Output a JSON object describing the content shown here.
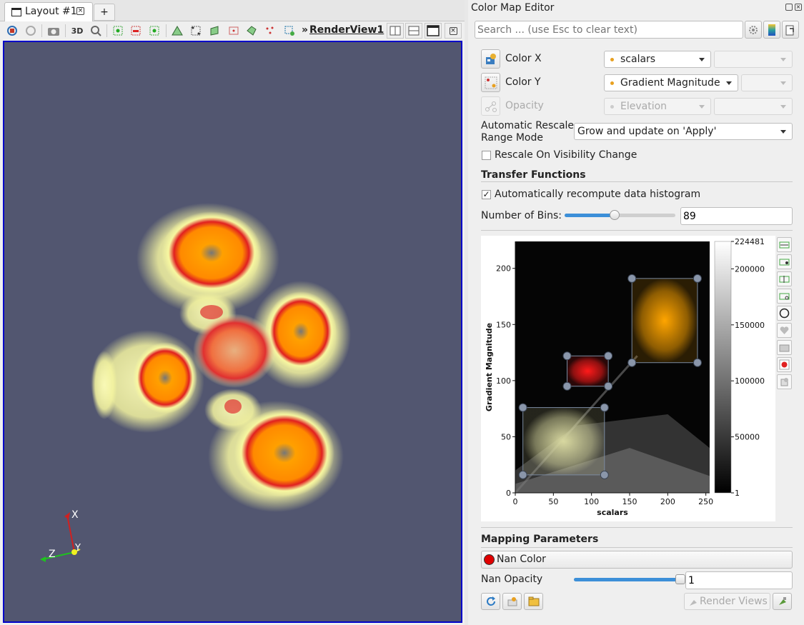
{
  "layout_tabs": {
    "active_tab": "Layout #1",
    "add_tab": "+"
  },
  "toolbar": {
    "mode_3d": "3D",
    "overflow": "»",
    "view_name": "RenderView1"
  },
  "axes_triad": {
    "x": "X",
    "y": "Y",
    "z": "Z"
  },
  "panel": {
    "title": "Color Map Editor",
    "search_placeholder": "Search ... (use Esc to clear text)",
    "color_x_label": "Color X",
    "color_x_value": "scalars",
    "color_y_label": "Color Y",
    "color_y_value": "Gradient Magnitude",
    "opacity_label": "Opacity",
    "opacity_value": "Elevation",
    "rescale_mode_label_1": "Automatic Rescale",
    "rescale_mode_label_2": "Range Mode",
    "rescale_mode_value": "Grow and update on 'Apply'",
    "rescale_visibility_label": "Rescale On Visibility Change",
    "rescale_visibility_checked": false,
    "transfer_functions_header": "Transfer Functions",
    "auto_histogram_label": "Automatically recompute data histogram",
    "auto_histogram_checked": true,
    "bins_label": "Number of Bins:",
    "bins_value": "89",
    "bins_slider_fraction": 0.45,
    "mapping_header": "Mapping Parameters",
    "nan_color_label": "Nan Color",
    "nan_color": "#e00000",
    "nan_opacity_label": "Nan Opacity",
    "nan_opacity_value": "1",
    "nan_opacity_slider_fraction": 1.0,
    "render_views_label": "Render Views",
    "check_mark": "✓"
  },
  "chart_data": {
    "type": "heatmap",
    "xlabel": "scalars",
    "ylabel": "Gradient Magnitude",
    "xlim": [
      0,
      255
    ],
    "ylim": [
      0,
      224
    ],
    "x_ticks": [
      "0",
      "50",
      "100",
      "150",
      "200",
      "250"
    ],
    "y_ticks": [
      "0",
      "50",
      "100",
      "150",
      "200"
    ],
    "colorbar_ticks": [
      "224481",
      "200000",
      "150000",
      "100000",
      "50000",
      "1"
    ],
    "colorbar_range": [
      1,
      224481
    ],
    "regions": [
      {
        "color": "#d8d8a0",
        "x": [
          10,
          117
        ],
        "y": [
          16,
          76
        ]
      },
      {
        "color": "#ff1a1a",
        "x": [
          68,
          122
        ],
        "y": [
          95,
          122
        ]
      },
      {
        "color": "#ffa500",
        "x": [
          153,
          239
        ],
        "y": [
          116,
          191
        ]
      }
    ]
  },
  "colors": {
    "viewport_bg": "#525670",
    "viewport_border": "#0000c8",
    "accent": "#3c8fd8"
  }
}
